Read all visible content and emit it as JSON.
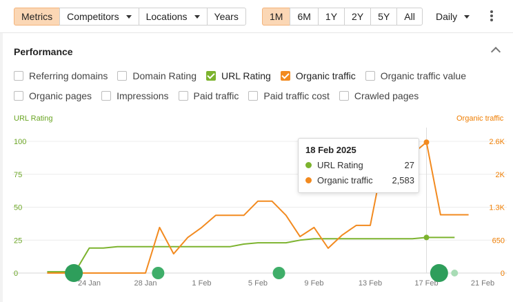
{
  "toolbar": {
    "tabs": [
      {
        "label": "Metrics",
        "active": true,
        "dropdown": false
      },
      {
        "label": "Competitors",
        "active": false,
        "dropdown": true
      },
      {
        "label": "Locations",
        "active": false,
        "dropdown": true
      },
      {
        "label": "Years",
        "active": false,
        "dropdown": false
      }
    ],
    "ranges": [
      {
        "label": "1M",
        "active": true
      },
      {
        "label": "6M",
        "active": false
      },
      {
        "label": "1Y",
        "active": false
      },
      {
        "label": "2Y",
        "active": false
      },
      {
        "label": "5Y",
        "active": false
      },
      {
        "label": "All",
        "active": false
      }
    ],
    "interval": "Daily",
    "more_icon": "kebab-icon"
  },
  "card": {
    "title": "Performance",
    "collapse_icon": "chevron-up-icon",
    "metrics_row1": [
      {
        "label": "Referring domains",
        "checked": false,
        "color": ""
      },
      {
        "label": "Domain Rating",
        "checked": false,
        "color": ""
      },
      {
        "label": "URL Rating",
        "checked": true,
        "color": "#7cb32e"
      },
      {
        "label": "Organic traffic",
        "checked": true,
        "color": "#f28a1f"
      },
      {
        "label": "Organic traffic value",
        "checked": false,
        "color": ""
      }
    ],
    "metrics_row2": [
      {
        "label": "Organic pages",
        "checked": false,
        "color": ""
      },
      {
        "label": "Impressions",
        "checked": false,
        "color": ""
      },
      {
        "label": "Paid traffic",
        "checked": false,
        "color": ""
      },
      {
        "label": "Paid traffic cost",
        "checked": false,
        "color": ""
      },
      {
        "label": "Crawled pages",
        "checked": false,
        "color": ""
      }
    ]
  },
  "chart_data": {
    "type": "line",
    "left_axis_title": "URL Rating",
    "right_axis_title": "Organic traffic",
    "left_ticks": [
      "100",
      "75",
      "50",
      "25",
      "0"
    ],
    "right_ticks": [
      "2.6K",
      "2K",
      "1.3K",
      "650",
      "0"
    ],
    "left_ylim": [
      0,
      100
    ],
    "right_ylim": [
      0,
      2600
    ],
    "x_ticks": [
      "24 Jan",
      "28 Jan",
      "1 Feb",
      "5 Feb",
      "9 Feb",
      "13 Feb",
      "17 Feb",
      "21 Feb"
    ],
    "x_domain_days": [
      20,
      52
    ],
    "grid": true,
    "series": [
      {
        "name": "URL Rating",
        "axis": "left",
        "color": "#7cb32e",
        "x": [
          21,
          22,
          23,
          24,
          25,
          26,
          27,
          28,
          29,
          30,
          31,
          32,
          33,
          34,
          35,
          36,
          37,
          38,
          39,
          40,
          41,
          42,
          43,
          44,
          45,
          46,
          47,
          48,
          49,
          50
        ],
        "y": [
          1,
          1,
          1,
          19,
          19,
          20,
          20,
          20,
          20,
          20,
          20,
          20,
          20,
          20,
          22,
          23,
          23,
          23,
          25,
          26,
          26,
          26,
          26,
          26,
          26,
          26,
          26,
          27,
          27,
          27
        ]
      },
      {
        "name": "Organic traffic",
        "axis": "right",
        "color": "#f28a1f",
        "x": [
          21,
          22,
          23,
          24,
          25,
          26,
          27,
          28,
          29,
          30,
          31,
          32,
          33,
          34,
          35,
          36,
          37,
          38,
          39,
          40,
          41,
          42,
          43,
          44,
          45,
          46,
          47,
          48,
          49,
          50,
          51
        ],
        "y": [
          0,
          0,
          0,
          0,
          0,
          0,
          0,
          0,
          900,
          380,
          700,
          900,
          1140,
          1140,
          1140,
          1420,
          1420,
          1140,
          720,
          900,
          490,
          750,
          940,
          940,
          2350,
          2350,
          2350,
          2583,
          1150,
          1150,
          1150
        ]
      }
    ],
    "annotations": [
      {
        "x": 22.9,
        "size": "large",
        "color": "#2e9e5b"
      },
      {
        "x": 28.9,
        "size": "small",
        "color": "#3fae69"
      },
      {
        "x": 37.5,
        "size": "small",
        "color": "#3fae69"
      },
      {
        "x": 48.9,
        "size": "large",
        "color": "#2e9e5b"
      },
      {
        "x": 50,
        "size": "tiny",
        "color": "#a8dcb5"
      }
    ],
    "hover": {
      "x": 48,
      "date": "18 Feb 2025",
      "rows": [
        {
          "name": "URL Rating",
          "value": "27",
          "color": "#7cb32e"
        },
        {
          "name": "Organic traffic",
          "value": "2,583",
          "color": "#f28a1f"
        }
      ]
    }
  }
}
